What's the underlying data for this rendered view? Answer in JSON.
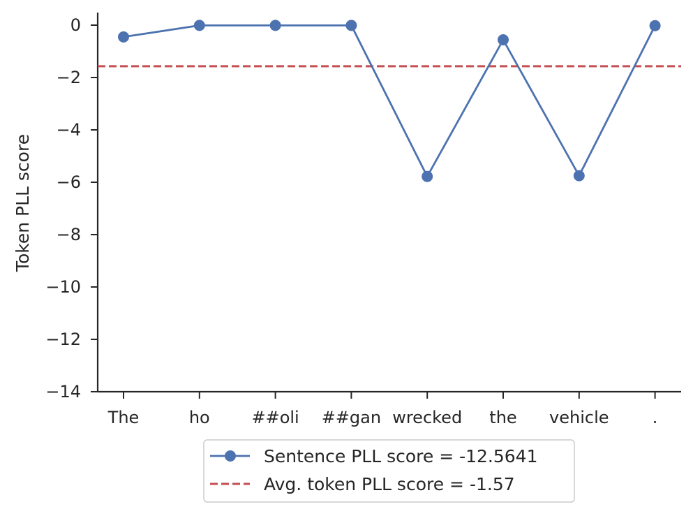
{
  "chart_data": {
    "type": "line",
    "categories": [
      "The",
      "ho",
      "##oli",
      "##gan",
      "wrecked",
      "the",
      "vehicle",
      "."
    ],
    "series": [
      {
        "name": "Sentence PLL score = -12.5641",
        "values": [
          -0.45,
          -0.01,
          -0.01,
          -0.01,
          -5.78,
          -0.56,
          -5.75,
          -0.02
        ],
        "color": "#4c72b0",
        "marker": "circle",
        "linestyle": "solid"
      }
    ],
    "reference_line": {
      "name": "Avg. token PLL score = -1.57",
      "value": -1.57,
      "color": "#c44e52",
      "linestyle": "dashed"
    },
    "ylabel": "Token PLL score",
    "xlabel": "",
    "ylim": [
      -14,
      0.5
    ],
    "yticks": [
      0,
      -2,
      -4,
      -6,
      -8,
      -10,
      -12,
      -14
    ],
    "ytick_labels": [
      "0",
      "−2",
      "−4",
      "−6",
      "−8",
      "−10",
      "−12",
      "−14"
    ],
    "grid": false,
    "legend_position": "below plot, centered"
  }
}
